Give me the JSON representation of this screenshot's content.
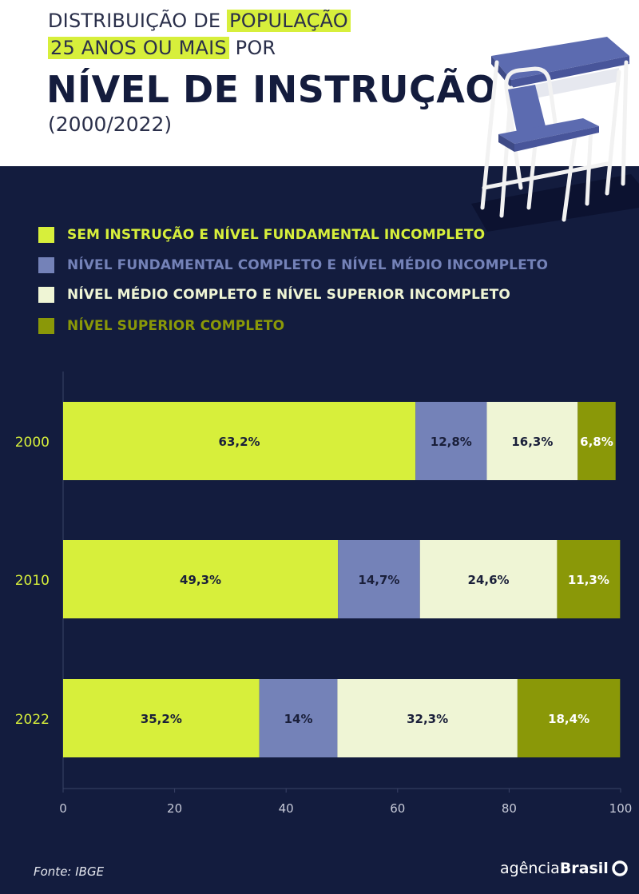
{
  "header": {
    "line1_pre": "DISTRIBUIÇÃO DE ",
    "line1_hl": "POPULAÇÃO",
    "line2_hl": "25 ANOS OU MAIS",
    "line2_post": " POR",
    "line3": "NÍVEL DE INSTRUÇÃO",
    "line4": "(2000/2022)"
  },
  "legend": [
    {
      "label": "SEM INSTRUÇÃO E NÍVEL FUNDAMENTAL INCOMPLETO",
      "color": "#d7ef3b"
    },
    {
      "label": "NÍVEL FUNDAMENTAL COMPLETO E NÍVEL MÉDIO INCOMPLETO",
      "color": "#7482b8"
    },
    {
      "label": "NÍVEL MÉDIO COMPLETO E NÍVEL SUPERIOR INCOMPLETO",
      "color": "#eff5d5"
    },
    {
      "label": "NÍVEL SUPERIOR COMPLETO",
      "color": "#8a9808"
    }
  ],
  "chart_data": {
    "type": "bar",
    "orientation": "horizontal",
    "stacked": true,
    "categories": [
      "2000",
      "2010",
      "2022"
    ],
    "series": [
      {
        "name": "SEM INSTRUÇÃO E NÍVEL FUNDAMENTAL INCOMPLETO",
        "values": [
          63.2,
          49.3,
          35.2
        ],
        "labels": [
          "63,2%",
          "49,3%",
          "35,2%"
        ],
        "color": "#d7ef3b",
        "label_color": "#1a1f3a"
      },
      {
        "name": "NÍVEL FUNDAMENTAL COMPLETO E NÍVEL MÉDIO INCOMPLETO",
        "values": [
          12.8,
          14.7,
          14
        ],
        "labels": [
          "12,8%",
          "14,7%",
          "14%"
        ],
        "color": "#7482b8",
        "label_color": "#1a1f3a"
      },
      {
        "name": "NÍVEL MÉDIO COMPLETO E NÍVEL SUPERIOR INCOMPLETO",
        "values": [
          16.3,
          24.6,
          32.3
        ],
        "labels": [
          "16,3%",
          "24,6%",
          "32,3%"
        ],
        "color": "#eff5d5",
        "label_color": "#1a1f3a"
      },
      {
        "name": "NÍVEL SUPERIOR COMPLETO",
        "values": [
          6.8,
          11.3,
          18.4
        ],
        "labels": [
          "6,8%",
          "11,3%",
          "18,4%"
        ],
        "color": "#8a9808",
        "label_color": "#ffffff"
      }
    ],
    "xlim": [
      0,
      100
    ],
    "xticks": [
      "0",
      "20",
      "40",
      "60",
      "80",
      "100"
    ],
    "category_label_color": "#d7ef3b",
    "grid": false,
    "legend_placement": "top"
  },
  "footer": {
    "source": "Fonte: IBGE",
    "brand_light": "agência",
    "brand_bold": "Brasil"
  }
}
